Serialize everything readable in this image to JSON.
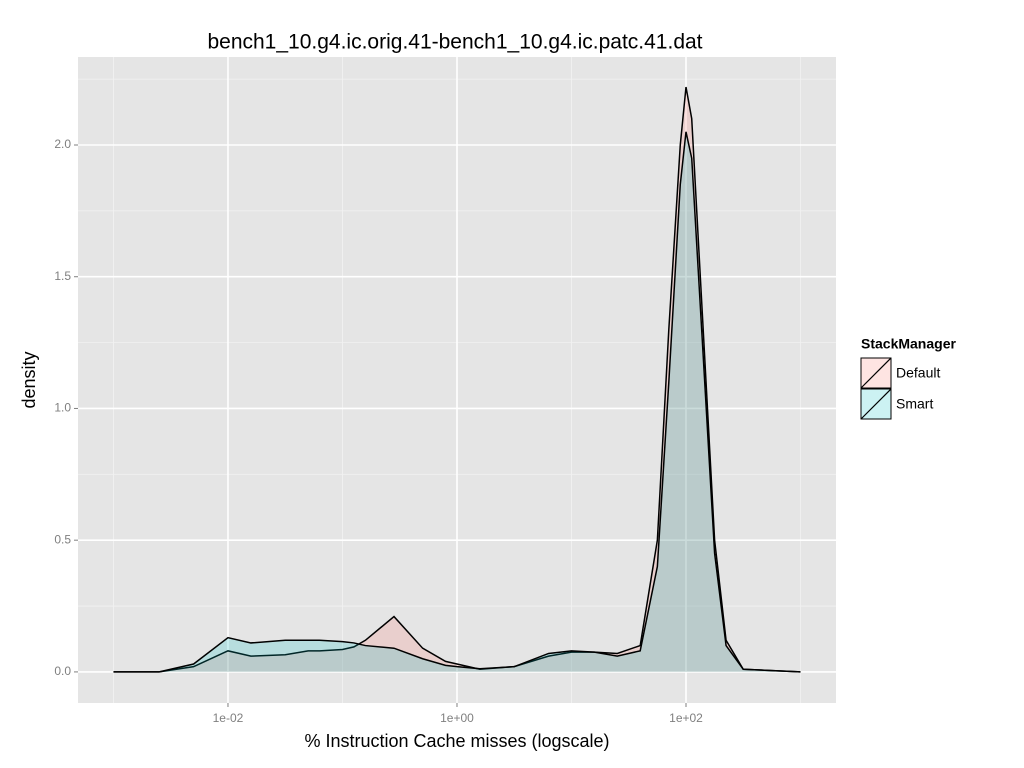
{
  "chart_data": {
    "type": "density",
    "title": "bench1_10.g4.ic.orig.41-bench1_10.g4.ic.patc.41.dat",
    "x_label": "% Instruction Cache misses (logscale)",
    "y_label": "density",
    "x_log": true,
    "grid": true,
    "legend_position": "right",
    "legend_title": "StackManager",
    "fill_alpha": 0.2,
    "xlim": [
      0.00049,
      2042
    ],
    "ylim": [
      -0.118,
      2.334
    ],
    "xticks": [
      {
        "value": 0.01,
        "label": "1e-02"
      },
      {
        "value": 1,
        "label": "1e+00"
      },
      {
        "value": 100,
        "label": "1e+02"
      }
    ],
    "yticks": [
      {
        "value": 0,
        "label": "0.0"
      },
      {
        "value": 0.5,
        "label": "0.5"
      },
      {
        "value": 1,
        "label": "1.0"
      },
      {
        "value": 1.5,
        "label": "1.5"
      },
      {
        "value": 2,
        "label": "2.0"
      }
    ],
    "x": [
      0.001,
      0.00251,
      0.00501,
      0.01,
      0.01585,
      0.03162,
      0.05012,
      0.0631,
      0.1,
      0.1259,
      0.1585,
      0.2818,
      0.5012,
      0.7943,
      1,
      1.585,
      3.162,
      6.31,
      10,
      15.85,
      25.12,
      39.81,
      56.23,
      70.79,
      89.13,
      100,
      112.2,
      141.3,
      177.8,
      223.9,
      316.2,
      1000
    ],
    "series": [
      {
        "name": "Default",
        "color": "#F8766D",
        "values": [
          0,
          0,
          0.02,
          0.08,
          0.06,
          0.065,
          0.08,
          0.08,
          0.085,
          0.095,
          0.12,
          0.21,
          0.09,
          0.04,
          0.03,
          0.01,
          0.02,
          0.06,
          0.075,
          0.075,
          0.07,
          0.1,
          0.5,
          1.3,
          2.0,
          2.22,
          2.1,
          1.3,
          0.5,
          0.12,
          0.01,
          0
        ]
      },
      {
        "name": "Smart",
        "color": "#00BFC4",
        "values": [
          0,
          0,
          0.03,
          0.13,
          0.11,
          0.12,
          0.12,
          0.12,
          0.115,
          0.11,
          0.1,
          0.09,
          0.05,
          0.025,
          0.02,
          0.012,
          0.02,
          0.07,
          0.08,
          0.075,
          0.06,
          0.08,
          0.4,
          1.1,
          1.85,
          2.05,
          1.95,
          1.2,
          0.45,
          0.1,
          0.01,
          0
        ]
      }
    ]
  }
}
